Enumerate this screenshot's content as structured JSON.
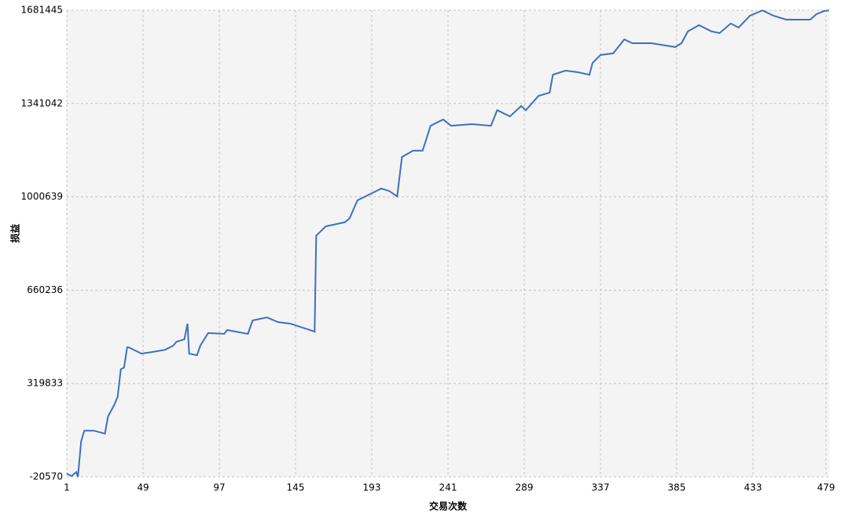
{
  "chart_data": {
    "type": "line",
    "xlabel": "交易次数",
    "ylabel": "损益",
    "x": [
      1,
      4,
      7,
      8,
      10,
      12,
      18,
      25,
      27,
      31,
      33,
      35,
      37,
      39,
      40,
      48,
      55,
      63,
      68,
      70,
      75,
      77,
      78,
      83,
      85,
      90,
      100,
      102,
      115,
      118,
      127,
      134,
      142,
      154,
      157,
      158,
      164,
      176,
      179,
      184,
      191,
      199,
      204,
      209,
      212,
      219,
      225,
      230,
      238,
      243,
      256,
      268,
      272,
      280,
      287,
      290,
      298,
      305,
      307,
      315,
      323,
      330,
      332,
      337,
      345,
      352,
      357,
      369,
      379,
      384,
      388,
      392,
      399,
      407,
      412,
      419,
      424,
      431,
      439,
      446,
      454,
      469,
      473,
      478,
      481
    ],
    "values": [
      -9000,
      -17700,
      -3000,
      -20570,
      108000,
      148000,
      148000,
      137000,
      200000,
      243000,
      272000,
      372000,
      378000,
      452000,
      452000,
      429000,
      435000,
      443000,
      458000,
      472000,
      481000,
      538000,
      429000,
      423000,
      458000,
      504000,
      501000,
      515000,
      501000,
      550000,
      561000,
      544000,
      538000,
      515000,
      509000,
      859000,
      893000,
      908000,
      922000,
      988000,
      1008000,
      1031000,
      1022000,
      1002000,
      1146000,
      1169000,
      1169000,
      1260000,
      1283000,
      1260000,
      1266000,
      1260000,
      1317000,
      1294000,
      1332000,
      1317000,
      1369000,
      1381000,
      1446000,
      1461000,
      1455000,
      1446000,
      1489000,
      1518000,
      1524000,
      1575000,
      1561000,
      1561000,
      1552000,
      1547000,
      1561000,
      1604000,
      1627000,
      1604000,
      1598000,
      1633000,
      1618000,
      1661000,
      1681000,
      1661000,
      1647000,
      1647000,
      1667000,
      1679000,
      1681000
    ],
    "color": "#3f6fbf",
    "xlim": [
      1,
      481
    ],
    "xticks": [
      1,
      49,
      97,
      145,
      193,
      241,
      289,
      337,
      385,
      433,
      479
    ],
    "ylim": [
      -20570,
      1681445
    ],
    "yticks": [
      -20570,
      319833,
      660236,
      1000639,
      1341042,
      1681445
    ],
    "grid": true
  }
}
